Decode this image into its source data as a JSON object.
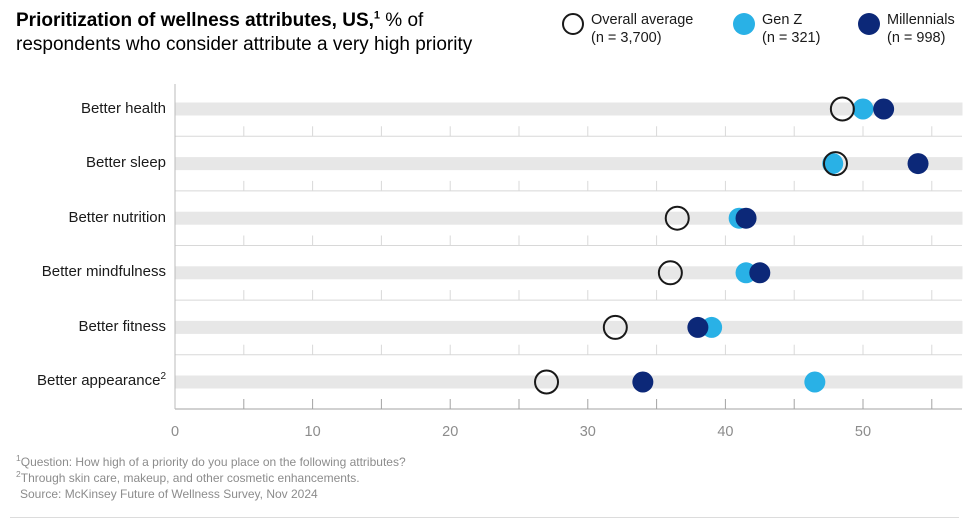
{
  "title": {
    "bold": "Prioritization of wellness attributes, US,",
    "sup": "1",
    "rest": " % of",
    "line2": "respondents who consider attribute a very high priority"
  },
  "legend": {
    "items": [
      {
        "label": "Overall average",
        "n_label": "(n = 3,700)",
        "fill": "#ffffff",
        "border": "#191919"
      },
      {
        "label": "Gen Z",
        "n_label": "(n = 321)",
        "fill": "#29b1e6"
      },
      {
        "label": "Millennials",
        "n_label": "(n = 998)",
        "fill": "#0c2878"
      }
    ]
  },
  "footnote_refs": {
    "title": "1",
    "appearance": "2"
  },
  "chart_data": {
    "type": "scatter",
    "variant": "horizontal-dot-plot",
    "title": "Prioritization of wellness attributes, US, % of respondents who consider attribute a very high priority",
    "categories": [
      "Better health",
      "Better sleep",
      "Better nutrition",
      "Better mindfulness",
      "Better fitness",
      "Better appearance"
    ],
    "series": [
      {
        "name": "Overall average",
        "marker": "open-circle",
        "color": "#ffffff",
        "stroke": "#191919",
        "values": [
          48.5,
          48,
          36.5,
          36,
          32,
          27
        ]
      },
      {
        "name": "Gen Z",
        "marker": "filled-circle",
        "color": "#29b1e6",
        "values": [
          50,
          47.8,
          41,
          41.5,
          39,
          46.5
        ]
      },
      {
        "name": "Millennials",
        "marker": "filled-circle",
        "color": "#0c2878",
        "values": [
          51.5,
          54,
          41.5,
          42.5,
          38,
          34
        ]
      }
    ],
    "xlim": [
      0,
      57
    ],
    "x_major_ticks": [
      0,
      10,
      20,
      30,
      40,
      50
    ],
    "x_minor_tick_step": 5,
    "grid": "row-separator-rules-with-minor-ticks",
    "legend_position": "top-right",
    "track_color": "#e7e7e7"
  },
  "footnotes": {
    "items": [
      {
        "sup": "1",
        "text": "Question: How high of a priority do you place on the following attributes?"
      },
      {
        "sup": "2",
        "text": "Through skin care, makeup, and other cosmetic enhancements."
      },
      {
        "sup": "",
        "text": "Source: McKinsey Future of Wellness Survey, Nov 2024"
      }
    ]
  }
}
